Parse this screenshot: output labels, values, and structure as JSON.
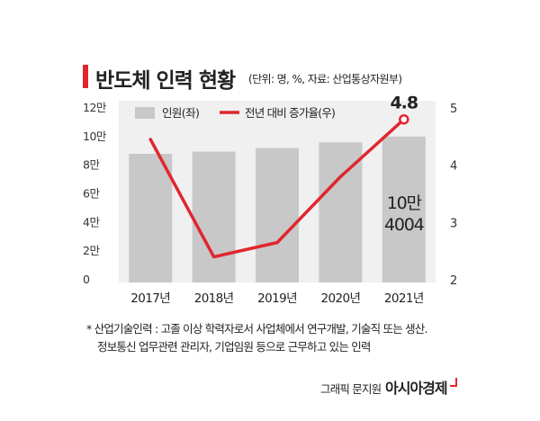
{
  "title": "반도체 인력 현황",
  "subtitle": "(단위: 명, %, 자료: 산업통상자원부)",
  "notes": [
    "* 산업기술인력 : 고졸 이상 학력자로서 사업체에서 연구개발, 기술직 또는 생산.",
    "정보통신 업무관련 관리자, 기업임원 등으로 근무하고 있는 인력"
  ],
  "credit": "그래픽 문지원",
  "brand": "아시아경제",
  "chart_data": {
    "type": "bar+line",
    "categories": [
      "2017년",
      "2018년",
      "2019년",
      "2020년",
      "2021년"
    ],
    "series": [
      {
        "name": "인원(좌)",
        "type": "bar",
        "axis": "left",
        "color": "#c8c8c8",
        "values": [
          88000,
          89500,
          92000,
          96000,
          100004
        ]
      },
      {
        "name": "전년 대비 증가율(우)",
        "type": "line",
        "axis": "right",
        "color": "#e1262d",
        "values": [
          4.45,
          2.4,
          2.65,
          3.8,
          4.8
        ]
      }
    ],
    "left_axis": {
      "ylim": [
        0,
        120000
      ],
      "ticks": [
        0,
        20000,
        40000,
        60000,
        80000,
        100000,
        120000
      ],
      "tick_labels": [
        "0",
        "2만",
        "4만",
        "6만",
        "8만",
        "10만",
        "12만"
      ]
    },
    "right_axis": {
      "ylim": [
        2,
        5
      ],
      "ticks": [
        2,
        3,
        4,
        5
      ],
      "tick_labels": [
        "2",
        "3",
        "4",
        "5"
      ]
    },
    "annotations": [
      {
        "text": "4.8",
        "series": "전년 대비 증가율(우)",
        "category": "2021년"
      },
      {
        "text": "10만",
        "series": "인원(좌)",
        "category": "2021년"
      },
      {
        "text": "4004",
        "series": "인원(좌)",
        "category": "2021년"
      }
    ],
    "legend": "top-left",
    "grid": false,
    "background_color": "#f0f0f0"
  }
}
